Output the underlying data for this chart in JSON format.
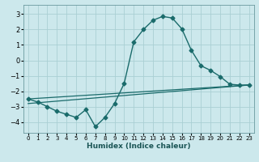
{
  "xlabel": "Humidex (Indice chaleur)",
  "bg_color": "#cce8ec",
  "grid_color": "#aacfd4",
  "line_color": "#1a6b6b",
  "xlim": [
    -0.5,
    23.5
  ],
  "ylim": [
    -4.7,
    3.6
  ],
  "xticks": [
    0,
    1,
    2,
    3,
    4,
    5,
    6,
    7,
    8,
    9,
    10,
    11,
    12,
    13,
    14,
    15,
    16,
    17,
    18,
    19,
    20,
    21,
    22,
    23
  ],
  "yticks": [
    -4,
    -3,
    -2,
    -1,
    0,
    1,
    2,
    3
  ],
  "series": [
    {
      "x": [
        0,
        1,
        2,
        3,
        4,
        5,
        6,
        7,
        8,
        9,
        10,
        11,
        12,
        13,
        14,
        15,
        16,
        17,
        18,
        19,
        20,
        21,
        22,
        23
      ],
      "y": [
        -2.5,
        -2.7,
        -3.0,
        -3.3,
        -3.5,
        -3.7,
        -3.2,
        -4.3,
        -3.7,
        -2.8,
        -1.5,
        1.2,
        2.0,
        2.6,
        2.85,
        2.75,
        2.05,
        0.65,
        -0.35,
        -0.65,
        -1.05,
        -1.55,
        -1.6,
        -1.6
      ],
      "marker": "D",
      "markersize": 2.5,
      "linewidth": 1.0
    },
    {
      "x": [
        0,
        23
      ],
      "y": [
        -2.5,
        -1.6
      ],
      "marker": null,
      "linewidth": 0.9
    },
    {
      "x": [
        0,
        23
      ],
      "y": [
        -2.8,
        -1.6
      ],
      "marker": null,
      "linewidth": 0.9
    }
  ]
}
